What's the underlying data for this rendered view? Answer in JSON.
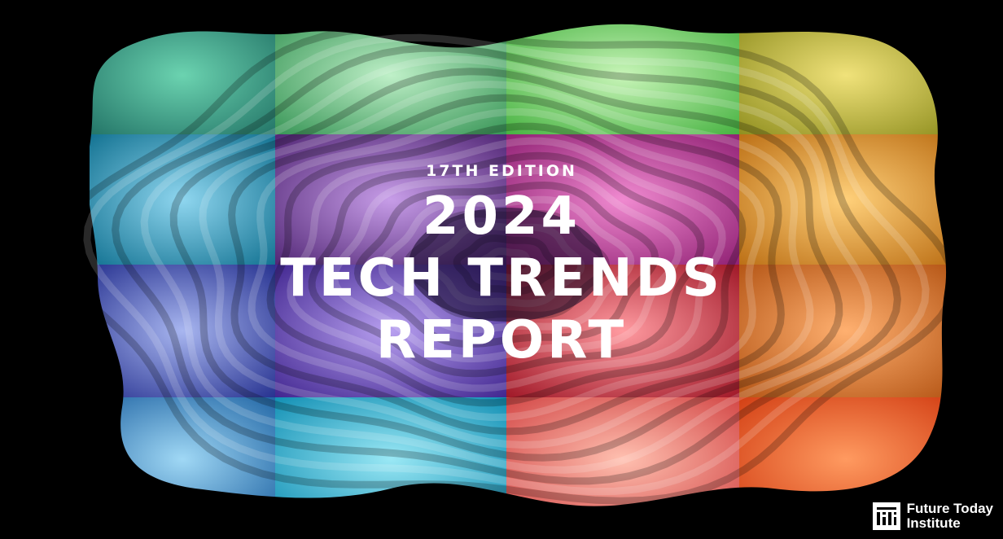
{
  "cover": {
    "edition": "17TH EDITION",
    "title_lines": [
      "2024",
      "TECH TRENDS",
      "REPORT"
    ]
  },
  "logo": {
    "line1": "Future Today",
    "line2": "Institute"
  },
  "colors": {
    "background": "#000000",
    "text": "#ffffff",
    "quadrants": [
      "teal",
      "green",
      "green-yellow",
      "yellow",
      "cyan-blue",
      "purple",
      "magenta",
      "orange",
      "indigo",
      "violet",
      "crimson",
      "orange-red",
      "sky-blue",
      "cyan",
      "salmon",
      "red-orange"
    ]
  }
}
